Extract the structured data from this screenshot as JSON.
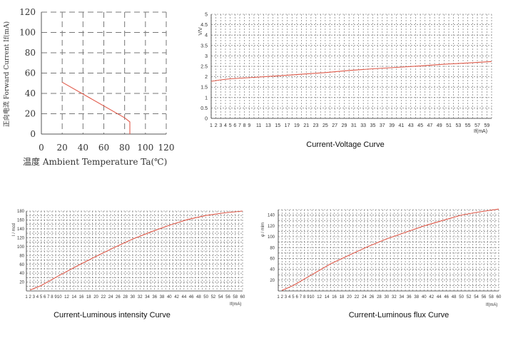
{
  "chart_data": [
    {
      "type": "line",
      "title": "",
      "xlabel": "温度 Ambient Temperature Ta(℃)",
      "ylabel": "正向电流 Forward Current If(mA)",
      "xlim": [
        0,
        120
      ],
      "ylim": [
        0,
        120
      ],
      "x_ticks": [
        0,
        20,
        40,
        60,
        80,
        100,
        120
      ],
      "y_ticks": [
        0,
        20,
        40,
        60,
        80,
        100,
        120
      ],
      "grid": true,
      "series": [
        {
          "x": [
            20,
            80,
            85,
            85
          ],
          "y": [
            51,
            16,
            12,
            0
          ],
          "color": "#e05a4a"
        }
      ]
    },
    {
      "type": "line",
      "title": "Current-Voltage Curve",
      "xlabel": "If(mA)",
      "ylabel": "V/V",
      "xlim": [
        1,
        60
      ],
      "ylim": [
        0,
        5
      ],
      "x_ticks": [
        1,
        2,
        3,
        4,
        5,
        6,
        7,
        8,
        9,
        11,
        13,
        15,
        17,
        19,
        21,
        23,
        25,
        27,
        29,
        31,
        33,
        35,
        37,
        39,
        41,
        43,
        45,
        47,
        49,
        51,
        53,
        55,
        57,
        59
      ],
      "y_ticks": [
        0,
        0.5,
        1,
        1.5,
        2,
        2.5,
        3,
        3.5,
        4,
        4.5,
        5
      ],
      "grid": true,
      "series": [
        {
          "x": [
            1,
            3,
            5,
            10,
            15,
            20,
            25,
            30,
            35,
            40,
            45,
            50,
            55,
            60
          ],
          "y": [
            1.78,
            1.85,
            1.9,
            1.97,
            2.04,
            2.12,
            2.2,
            2.3,
            2.38,
            2.45,
            2.52,
            2.6,
            2.66,
            2.73
          ],
          "color": "#e05a4a"
        }
      ]
    },
    {
      "type": "line",
      "title": "Current-Luminous intensity Curve",
      "xlabel": "If(mA)",
      "ylabel": "I / mcd",
      "xlim": [
        1,
        60
      ],
      "ylim": [
        0,
        180
      ],
      "x_ticks": [
        1,
        2,
        3,
        4,
        5,
        6,
        7,
        8,
        9,
        10,
        12,
        14,
        16,
        18,
        20,
        22,
        24,
        26,
        28,
        30,
        32,
        34,
        36,
        38,
        40,
        42,
        44,
        46,
        48,
        50,
        52,
        54,
        56,
        58,
        60
      ],
      "y_ticks": [
        20,
        40,
        60,
        80,
        100,
        120,
        140,
        160,
        180
      ],
      "grid": true,
      "series": [
        {
          "x": [
            2,
            5,
            10,
            15,
            20,
            25,
            30,
            35,
            40,
            45,
            50,
            55,
            60
          ],
          "y": [
            2,
            12,
            35,
            57,
            78,
            98,
            117,
            133,
            148,
            161,
            170,
            176,
            180
          ],
          "color": "#e05a4a"
        }
      ]
    },
    {
      "type": "line",
      "title": "Current-Luminous flux Curve",
      "xlabel": "If(mA)",
      "ylabel": "φ / mlm",
      "xlim": [
        1,
        60
      ],
      "ylim": [
        0,
        150
      ],
      "x_ticks": [
        1,
        2,
        3,
        4,
        5,
        6,
        7,
        8,
        9,
        10,
        12,
        14,
        16,
        18,
        20,
        22,
        24,
        26,
        28,
        30,
        32,
        34,
        36,
        38,
        40,
        42,
        44,
        46,
        48,
        50,
        52,
        54,
        56,
        58,
        60
      ],
      "y_ticks": [
        20,
        40,
        60,
        80,
        100,
        120,
        140
      ],
      "grid": true,
      "series": [
        {
          "x": [
            2,
            5,
            10,
            15,
            20,
            25,
            30,
            35,
            40,
            45,
            50,
            55,
            60
          ],
          "y": [
            1,
            10,
            30,
            50,
            66,
            82,
            96,
            108,
            120,
            130,
            140,
            146,
            151
          ],
          "color": "#e05a4a"
        }
      ]
    }
  ]
}
